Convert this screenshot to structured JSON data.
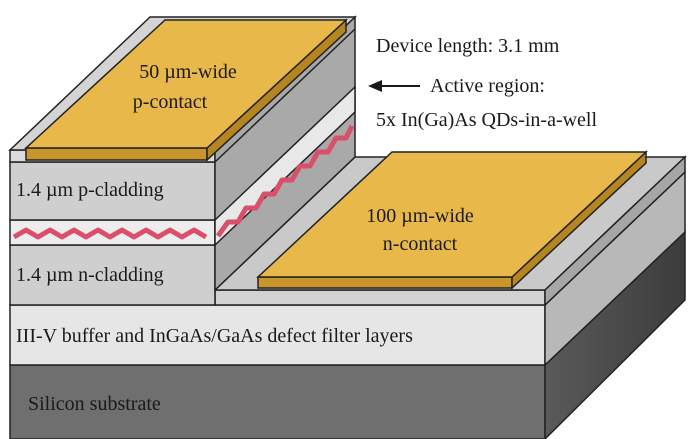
{
  "labels": {
    "device_length": "Device length: 3.1 mm",
    "active_region_line1": "Active region:",
    "active_region_line2": "5x In(Ga)As QDs-in-a-well",
    "p_contact_line1": "50 µm-wide",
    "p_contact_line2": "p-contact",
    "n_contact_line1": "100 µm-wide",
    "n_contact_line2": "n-contact",
    "p_cladding": "1.4 µm p-cladding",
    "n_cladding": "1.4 µm n-cladding",
    "buffer": "III-V buffer and InGaAs/GaAs defect filter layers",
    "substrate": "Silicon substrate"
  },
  "colors": {
    "contact_gold": "#e8b84a",
    "cladding_gray": "#c7c7c7",
    "layer_light": "#e3e3e3",
    "substrate_dark": "#6b6b6b",
    "quantum_dot_red": "#d9506a"
  }
}
